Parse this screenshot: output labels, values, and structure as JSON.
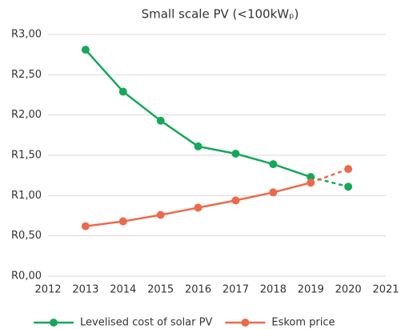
{
  "chart_data": {
    "type": "line",
    "title": "Small scale PV (<100kWₚ)",
    "x": [
      2013,
      2014,
      2015,
      2016,
      2017,
      2018,
      2019,
      2020
    ],
    "series": [
      {
        "name": "Levelised cost of solar PV",
        "color": "#16a85a",
        "values": [
          2.81,
          2.29,
          1.93,
          1.61,
          1.52,
          1.39,
          1.23,
          1.11
        ]
      },
      {
        "name": "Eskom price",
        "color": "#ec6a4c",
        "values": [
          0.62,
          0.68,
          0.76,
          0.85,
          0.94,
          1.04,
          1.16,
          1.33
        ]
      }
    ],
    "dashed_after": 2019,
    "xlim": [
      2012,
      2021
    ],
    "xticks": [
      2012,
      2013,
      2014,
      2015,
      2016,
      2017,
      2018,
      2019,
      2020,
      2021
    ],
    "ylim": [
      0,
      3
    ],
    "yticks": [
      {
        "value": 0,
        "label": "R0,00"
      },
      {
        "value": 0.5,
        "label": "R0,50"
      },
      {
        "value": 1,
        "label": "R1,00"
      },
      {
        "value": 1.5,
        "label": "R1,50"
      },
      {
        "value": 2,
        "label": "R2,00"
      },
      {
        "value": 2.5,
        "label": "R2,50"
      },
      {
        "value": 3,
        "label": "R3,00"
      }
    ],
    "grid": true,
    "legend": "bottom"
  }
}
